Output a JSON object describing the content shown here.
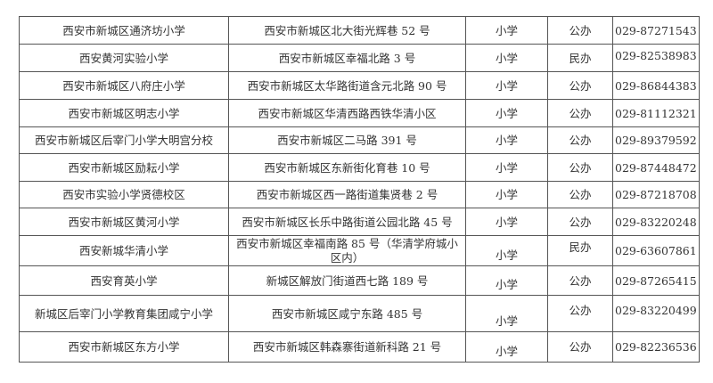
{
  "table": {
    "rows": [
      {
        "name": "西安市新城区通济坊小学",
        "address": "西安市新城区北大街光辉巷 52 号",
        "level": "小学",
        "type": "公办",
        "phone": "029-87271543"
      },
      {
        "name": "西安黄河实验小学",
        "address": "西安市新城区幸福北路 3 号",
        "level": "小学",
        "type": "民办",
        "phone": "029-82538983"
      },
      {
        "name": "西安市新城区八府庄小学",
        "address": "西安市新城区太华路街道含元北路 90 号",
        "level": "小学",
        "type": "公办",
        "phone": "029-86844383"
      },
      {
        "name": "西安市新城区明志小学",
        "address": "西安市新城区华清西路西铁华清小区",
        "level": "小学",
        "type": "公办",
        "phone": "029-81112321"
      },
      {
        "name": "西安市新城区后宰门小学大明宫分校",
        "address": "西安市新城区二马路 391 号",
        "level": "小学",
        "type": "公办",
        "phone": "029-89379592"
      },
      {
        "name": "西安市新城区励耘小学",
        "address": "西安市新城区东新街化育巷 10 号",
        "level": "小学",
        "type": "公办",
        "phone": "029-87448472"
      },
      {
        "name": "西安市实验小学贤德校区",
        "address": "西安市新城区西一路街道集贤巷 2 号",
        "level": "小学",
        "type": "公办",
        "phone": "029-87218708"
      },
      {
        "name": "西安市新城区黄河小学",
        "address": "西安市新城区长乐中路街道公园北路 45 号",
        "level": "小学",
        "type": "公办",
        "phone": "029-83220248"
      },
      {
        "name": "西安新城华清小学",
        "address": "西安市新城区幸福南路 85 号（华清学府城小区内）",
        "level": "小学",
        "type": "民办",
        "phone": "029-63607861"
      },
      {
        "name": "西安育英小学",
        "address": "新城区解放门街道西七路 189 号",
        "level": "小学",
        "type": "公办",
        "phone": "029-87265415"
      },
      {
        "name": "新城区后宰门小学教育集团咸宁小学",
        "address": "西安市新城区咸宁东路 485 号",
        "level": "小学",
        "type": "公办",
        "phone": "029-83220499"
      },
      {
        "name": "西安市新城区东方小学",
        "address": "西安市新城区韩森寨街道新科路 21 号",
        "level": "小学",
        "type": "公办",
        "phone": "029-82236536"
      }
    ]
  }
}
